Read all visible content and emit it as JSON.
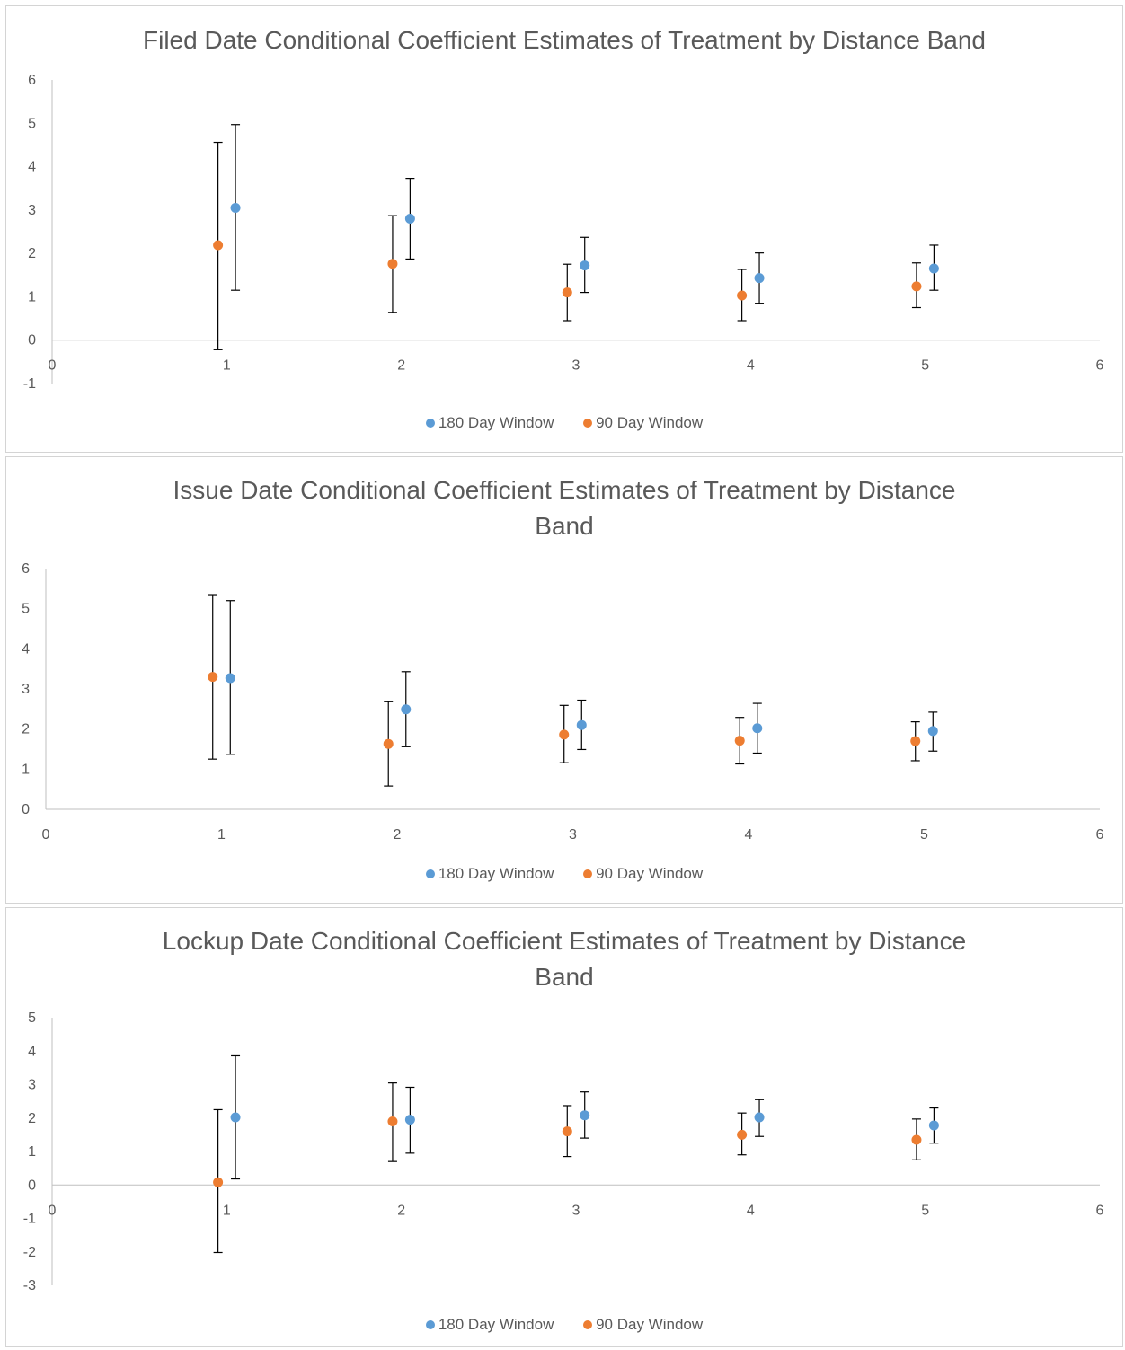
{
  "colors": {
    "series_180": "#5B9BD5",
    "series_90": "#ED7D31",
    "axis": "#bfbfbf",
    "text": "#595959",
    "error_bar": "#000000"
  },
  "legend": {
    "series_180": "180 Day Window",
    "series_90": "90 Day Window"
  },
  "chart_data": [
    {
      "type": "scatter",
      "title": "Filed Date Conditional Coefficient Estimates of Treatment by Distance Band",
      "xlabel": "",
      "ylabel": "",
      "xlim": [
        0,
        6
      ],
      "ylim": [
        -1,
        6
      ],
      "x_ticks": [
        0,
        1,
        2,
        3,
        4,
        5,
        6
      ],
      "y_ticks": [
        -1,
        0,
        1,
        2,
        3,
        4,
        5,
        6
      ],
      "grid": false,
      "legend_position": "bottom",
      "series": [
        {
          "name": "180 Day Window",
          "points": [
            {
              "x": 1.05,
              "y": 3.05,
              "lo": 1.15,
              "hi": 4.97
            },
            {
              "x": 2.05,
              "y": 2.8,
              "lo": 1.87,
              "hi": 3.73
            },
            {
              "x": 3.05,
              "y": 1.72,
              "lo": 1.1,
              "hi": 2.37
            },
            {
              "x": 4.05,
              "y": 1.43,
              "lo": 0.85,
              "hi": 2.01
            },
            {
              "x": 5.05,
              "y": 1.65,
              "lo": 1.15,
              "hi": 2.19
            }
          ]
        },
        {
          "name": "90 Day Window",
          "points": [
            {
              "x": 0.95,
              "y": 2.19,
              "lo": -0.22,
              "hi": 4.56
            },
            {
              "x": 1.95,
              "y": 1.76,
              "lo": 0.64,
              "hi": 2.87
            },
            {
              "x": 2.95,
              "y": 1.1,
              "lo": 0.45,
              "hi": 1.75
            },
            {
              "x": 3.95,
              "y": 1.03,
              "lo": 0.45,
              "hi": 1.63
            },
            {
              "x": 4.95,
              "y": 1.24,
              "lo": 0.75,
              "hi": 1.78
            }
          ]
        }
      ]
    },
    {
      "type": "scatter",
      "title": "Issue Date Conditional Coefficient Estimates of Treatment by Distance Band",
      "xlabel": "",
      "ylabel": "",
      "xlim": [
        0,
        6
      ],
      "ylim": [
        0,
        6
      ],
      "x_ticks": [
        0,
        1,
        2,
        3,
        4,
        5,
        6
      ],
      "y_ticks": [
        0,
        1,
        2,
        3,
        4,
        5,
        6
      ],
      "grid": false,
      "legend_position": "bottom",
      "series": [
        {
          "name": "180 Day Window",
          "points": [
            {
              "x": 1.05,
              "y": 3.27,
              "lo": 1.37,
              "hi": 5.2
            },
            {
              "x": 2.05,
              "y": 2.49,
              "lo": 1.56,
              "hi": 3.43
            },
            {
              "x": 3.05,
              "y": 2.1,
              "lo": 1.49,
              "hi": 2.72
            },
            {
              "x": 4.05,
              "y": 2.02,
              "lo": 1.4,
              "hi": 2.64
            },
            {
              "x": 5.05,
              "y": 1.95,
              "lo": 1.45,
              "hi": 2.42
            }
          ]
        },
        {
          "name": "90 Day Window",
          "points": [
            {
              "x": 0.95,
              "y": 3.3,
              "lo": 1.25,
              "hi": 5.35
            },
            {
              "x": 1.95,
              "y": 1.63,
              "lo": 0.58,
              "hi": 2.68
            },
            {
              "x": 2.95,
              "y": 1.86,
              "lo": 1.16,
              "hi": 2.59
            },
            {
              "x": 3.95,
              "y": 1.71,
              "lo": 1.13,
              "hi": 2.29
            },
            {
              "x": 4.95,
              "y": 1.7,
              "lo": 1.21,
              "hi": 2.18
            }
          ]
        }
      ]
    },
    {
      "type": "scatter",
      "title": "Lockup Date Conditional Coefficient Estimates of Treatment by Distance Band",
      "xlabel": "",
      "ylabel": "",
      "xlim": [
        0,
        6
      ],
      "ylim": [
        -3,
        5
      ],
      "x_ticks": [
        0,
        1,
        2,
        3,
        4,
        5,
        6
      ],
      "y_ticks": [
        -3,
        -2,
        -1,
        0,
        1,
        2,
        3,
        4,
        5
      ],
      "grid": false,
      "legend_position": "bottom",
      "series": [
        {
          "name": "180 Day Window",
          "points": [
            {
              "x": 1.05,
              "y": 2.02,
              "lo": 0.18,
              "hi": 3.86
            },
            {
              "x": 2.05,
              "y": 1.95,
              "lo": 0.95,
              "hi": 2.92
            },
            {
              "x": 3.05,
              "y": 2.08,
              "lo": 1.4,
              "hi": 2.78
            },
            {
              "x": 4.05,
              "y": 2.02,
              "lo": 1.45,
              "hi": 2.55
            },
            {
              "x": 5.05,
              "y": 1.78,
              "lo": 1.25,
              "hi": 2.3
            }
          ]
        },
        {
          "name": "90 Day Window",
          "points": [
            {
              "x": 0.95,
              "y": 0.08,
              "lo": -2.02,
              "hi": 2.25
            },
            {
              "x": 1.95,
              "y": 1.9,
              "lo": 0.7,
              "hi": 3.05
            },
            {
              "x": 2.95,
              "y": 1.6,
              "lo": 0.85,
              "hi": 2.37
            },
            {
              "x": 3.95,
              "y": 1.5,
              "lo": 0.9,
              "hi": 2.15
            },
            {
              "x": 4.95,
              "y": 1.35,
              "lo": 0.75,
              "hi": 1.97
            }
          ]
        }
      ]
    }
  ]
}
